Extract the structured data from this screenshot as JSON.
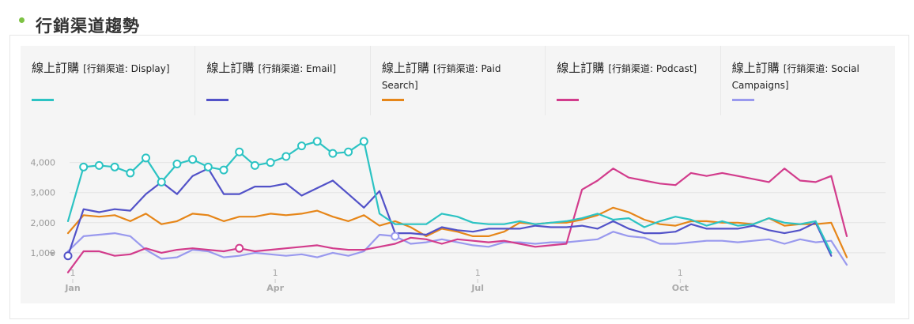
{
  "panel": {
    "title": "行銷渠道趨勢"
  },
  "legend": [
    {
      "main": "線上訂購",
      "bracket": "[行銷渠道: Display]",
      "color": "#2cc3c3"
    },
    {
      "main": "線上訂購",
      "bracket": "[行銷渠道: Email]",
      "color": "#5252c8"
    },
    {
      "main": "線上訂購",
      "bracket": "[行銷渠道: Paid Search]",
      "color": "#e68619"
    },
    {
      "main": "線上訂購",
      "bracket": "[行銷渠道: Podcast]",
      "color": "#d23c8c"
    },
    {
      "main": "線上訂購",
      "bracket": "[行銷渠道: Social Campaigns]",
      "color": "#9999ee"
    }
  ],
  "chart_data": {
    "type": "line",
    "title": "",
    "xlabel": "",
    "ylabel": "",
    "ylim": [
      0,
      4700
    ],
    "yticks": [
      "1,000",
      "2,000",
      "3,000",
      "4,000"
    ],
    "ytick_values": [
      1000,
      2000,
      3000,
      4000
    ],
    "xticks": [
      {
        "day": "1",
        "month": "Jan",
        "week": 0
      },
      {
        "day": "1",
        "month": "Apr",
        "week": 13
      },
      {
        "day": "1",
        "month": "Jul",
        "week": 26
      },
      {
        "day": "1",
        "month": "Oct",
        "week": 39
      }
    ],
    "grid": true,
    "series": [
      {
        "name": "線上訂購 [行銷渠道: Display]",
        "color": "#2cc3c3",
        "values": [
          2050,
          3850,
          3900,
          3850,
          3650,
          4150,
          3350,
          3950,
          4100,
          3850,
          3750,
          4350,
          3900,
          4000,
          4200,
          4550,
          4700,
          4300,
          4350,
          4700,
          2300,
          1950,
          1950,
          1950,
          2300,
          2200,
          2000,
          1950,
          1950,
          2050,
          1950,
          2000,
          2050,
          2150,
          2300,
          2100,
          2150,
          1850,
          2050,
          2200,
          2100,
          1900,
          2050,
          1900,
          1950,
          2150,
          2000,
          1950,
          2050,
          1000
        ],
        "markers": [
          1,
          2,
          3,
          4,
          5,
          6,
          7,
          8,
          9,
          10,
          11,
          12,
          13,
          14,
          15,
          16,
          17,
          18,
          19
        ]
      },
      {
        "name": "線上訂購 [行銷渠道: Email]",
        "color": "#5252c8",
        "values": [
          900,
          2450,
          2350,
          2450,
          2400,
          2950,
          3350,
          2950,
          3550,
          3800,
          2950,
          2950,
          3200,
          3200,
          3300,
          2900,
          3150,
          3400,
          2950,
          2500,
          3050,
          1650,
          1650,
          1600,
          1850,
          1750,
          1700,
          1800,
          1800,
          1800,
          1900,
          1850,
          1850,
          1900,
          1800,
          2050,
          1800,
          1650,
          1650,
          1700,
          1950,
          1800,
          1800,
          1800,
          1900,
          1750,
          1650,
          1750,
          2000,
          900
        ],
        "markers": [
          0
        ]
      },
      {
        "name": "線上訂購 [行銷渠道: Paid Search]",
        "color": "#e68619",
        "values": [
          1650,
          2250,
          2200,
          2250,
          2050,
          2300,
          1950,
          2050,
          2300,
          2250,
          2050,
          2200,
          2200,
          2300,
          2250,
          2300,
          2400,
          2200,
          2050,
          2250,
          1900,
          2050,
          1850,
          1550,
          1800,
          1700,
          1550,
          1550,
          1700,
          2000,
          1950,
          2000,
          2000,
          2100,
          2250,
          2500,
          2350,
          2100,
          1950,
          1900,
          2050,
          2050,
          2000,
          2000,
          1950,
          2150,
          1900,
          1950,
          1950,
          2000,
          850
        ],
        "markers": []
      },
      {
        "name": "線上訂購 [行銷渠道: Podcast]",
        "color": "#d23c8c",
        "values": [
          350,
          1050,
          1050,
          900,
          950,
          1150,
          1000,
          1100,
          1150,
          1100,
          1050,
          1150,
          1050,
          1100,
          1150,
          1200,
          1250,
          1150,
          1100,
          1100,
          1200,
          1300,
          1500,
          1450,
          1300,
          1450,
          1400,
          1350,
          1400,
          1300,
          1200,
          1250,
          1300,
          3100,
          3400,
          3800,
          3500,
          3400,
          3300,
          3250,
          3650,
          3550,
          3650,
          3550,
          3450,
          3350,
          3800,
          3400,
          3350,
          3550,
          1550
        ],
        "markers": [
          11
        ]
      },
      {
        "name": "線上訂購 [行銷渠道: Social Campaigns]",
        "color": "#9999ee",
        "values": [
          1050,
          1550,
          1600,
          1650,
          1550,
          1100,
          800,
          850,
          1100,
          1050,
          850,
          900,
          1000,
          950,
          900,
          950,
          850,
          1000,
          900,
          1050,
          1600,
          1550,
          1300,
          1350,
          1450,
          1350,
          1250,
          1200,
          1350,
          1350,
          1300,
          1350,
          1350,
          1400,
          1450,
          1700,
          1550,
          1500,
          1300,
          1300,
          1350,
          1400,
          1400,
          1350,
          1400,
          1450,
          1300,
          1450,
          1350,
          1400,
          600
        ],
        "markers": [
          21
        ]
      }
    ]
  }
}
